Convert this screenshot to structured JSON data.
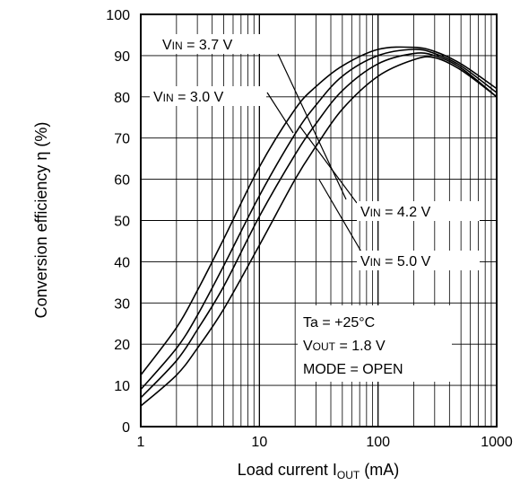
{
  "chart_data": {
    "type": "line",
    "x_scale": "log",
    "y_scale": "linear",
    "xlim": [
      1,
      1000
    ],
    "ylim": [
      0,
      100
    ],
    "grid": true,
    "xlabel": {
      "text": "Load current I",
      "sub": "OUT",
      "suffix": " (mA)"
    },
    "ylabel": "Conversion efficiency  η  (%)",
    "x_ticks": [
      {
        "value": 1,
        "label": "1"
      },
      {
        "value": 10,
        "label": "10"
      },
      {
        "value": 100,
        "label": "100"
      },
      {
        "value": 1000,
        "label": "1000"
      }
    ],
    "y_ticks": [
      {
        "value": 0,
        "label": "0"
      },
      {
        "value": 10,
        "label": "10"
      },
      {
        "value": 20,
        "label": "20"
      },
      {
        "value": 30,
        "label": "30"
      },
      {
        "value": 40,
        "label": "40"
      },
      {
        "value": 50,
        "label": "50"
      },
      {
        "value": 60,
        "label": "60"
      },
      {
        "value": 70,
        "label": "70"
      },
      {
        "value": 80,
        "label": "80"
      },
      {
        "value": 90,
        "label": "90"
      },
      {
        "value": 100,
        "label": "100"
      }
    ],
    "series": [
      {
        "name": "VIN = 3.0 V",
        "label": {
          "main": "V",
          "sub": "IN",
          "rest": " = 3.0 V"
        },
        "x": [
          1,
          2,
          3,
          5,
          10,
          20,
          30,
          50,
          100,
          200,
          300,
          500,
          1000
        ],
        "y": [
          12.5,
          24,
          33,
          45.5,
          63,
          77,
          82.5,
          87.5,
          91.5,
          92,
          91,
          88,
          82
        ]
      },
      {
        "name": "VIN = 3.7 V",
        "label": {
          "main": "V",
          "sub": "IN",
          "rest": " = 3.7 V"
        },
        "x": [
          1,
          2,
          3,
          5,
          10,
          20,
          30,
          50,
          100,
          200,
          300,
          500,
          1000
        ],
        "y": [
          9,
          19,
          27,
          39,
          56,
          71,
          78,
          85,
          90,
          91.5,
          90.5,
          87.5,
          81
        ]
      },
      {
        "name": "VIN = 4.2 V",
        "label": {
          "main": "V",
          "sub": "IN",
          "rest": " = 4.2 V"
        },
        "x": [
          1,
          2,
          3,
          5,
          10,
          20,
          30,
          50,
          100,
          200,
          300,
          500,
          1000
        ],
        "y": [
          7,
          16,
          23.5,
          34,
          51,
          66,
          73.5,
          81.5,
          88,
          90.5,
          90,
          87,
          80
        ]
      },
      {
        "name": "VIN = 5.0 V",
        "label": {
          "main": "V",
          "sub": "IN",
          "rest": " = 5.0 V"
        },
        "x": [
          1,
          2,
          3,
          5,
          10,
          20,
          30,
          50,
          100,
          200,
          300,
          500,
          1000
        ],
        "y": [
          5,
          12.5,
          19,
          28.5,
          44,
          60,
          68,
          77,
          85,
          89,
          89.5,
          86.5,
          80
        ]
      }
    ],
    "annotations": [
      {
        "main": "Ta  =  +25°C",
        "sub": "",
        "rest": ""
      },
      {
        "main": "V",
        "sub": "OUT",
        "rest": " = 1.8 V"
      },
      {
        "main": "MODE = OPEN",
        "sub": "",
        "rest": ""
      }
    ]
  }
}
